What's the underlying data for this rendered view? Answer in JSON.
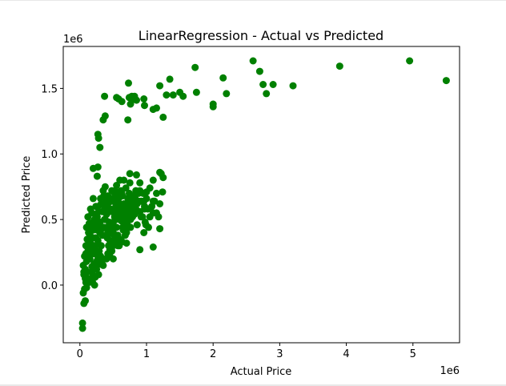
{
  "chart_data": {
    "type": "scatter",
    "title": "LinearRegression - Actual vs Predicted",
    "xlabel": "Actual Price",
    "ylabel": "Predicted Price",
    "x_offset_label": "1e6",
    "y_offset_label": "1e6",
    "xlim": [
      -0.25,
      5.7
    ],
    "ylim": [
      -0.44,
      1.82
    ],
    "x_ticks": [
      0,
      1,
      2,
      3,
      4,
      5
    ],
    "x_tick_labels": [
      "0",
      "1",
      "2",
      "3",
      "4",
      "5"
    ],
    "y_ticks": [
      0.0,
      0.5,
      1.0,
      1.5
    ],
    "y_tick_labels": [
      "0.0",
      "0.5",
      "1.0",
      "1.5"
    ],
    "grid": false,
    "marker_color": "#008000",
    "series": [
      {
        "points": [
          [
            0.04,
            -0.33
          ],
          [
            0.04,
            -0.29
          ],
          [
            0.06,
            -0.14
          ],
          [
            0.05,
            -0.06
          ],
          [
            0.08,
            -0.12
          ],
          [
            0.07,
            -0.03
          ],
          [
            0.09,
            0.02
          ],
          [
            0.06,
            0.08
          ],
          [
            0.08,
            0.12
          ],
          [
            0.05,
            0.15
          ],
          [
            0.1,
            0.18
          ],
          [
            0.07,
            0.22
          ],
          [
            0.12,
            0.26
          ],
          [
            0.09,
            0.3
          ],
          [
            0.11,
            0.35
          ],
          [
            0.13,
            0.4
          ],
          [
            0.1,
            0.44
          ],
          [
            0.14,
            0.47
          ],
          [
            0.15,
            0.38
          ],
          [
            0.16,
            0.32
          ],
          [
            0.17,
            0.27
          ],
          [
            0.15,
            0.2
          ],
          [
            0.18,
            0.14
          ],
          [
            0.2,
            0.07
          ],
          [
            0.19,
            0.02
          ],
          [
            0.22,
            0.0
          ],
          [
            0.13,
            0.05
          ],
          [
            0.11,
            0.1
          ],
          [
            0.21,
            0.24
          ],
          [
            0.23,
            0.3
          ],
          [
            0.24,
            0.36
          ],
          [
            0.2,
            0.42
          ],
          [
            0.22,
            0.5
          ],
          [
            0.18,
            0.55
          ],
          [
            0.24,
            0.6
          ],
          [
            0.26,
            0.52
          ],
          [
            0.28,
            0.45
          ],
          [
            0.3,
            0.4
          ],
          [
            0.27,
            0.34
          ],
          [
            0.32,
            0.3
          ],
          [
            0.29,
            0.26
          ],
          [
            0.31,
            0.22
          ],
          [
            0.33,
            0.18
          ],
          [
            0.35,
            0.15
          ],
          [
            0.25,
            0.12
          ],
          [
            0.28,
            0.08
          ],
          [
            0.34,
            0.38
          ],
          [
            0.36,
            0.44
          ],
          [
            0.38,
            0.5
          ],
          [
            0.4,
            0.54
          ],
          [
            0.37,
            0.58
          ],
          [
            0.42,
            0.62
          ],
          [
            0.39,
            0.66
          ],
          [
            0.44,
            0.48
          ],
          [
            0.46,
            0.42
          ],
          [
            0.41,
            0.36
          ],
          [
            0.43,
            0.3
          ],
          [
            0.48,
            0.26
          ],
          [
            0.45,
            0.34
          ],
          [
            0.5,
            0.4
          ],
          [
            0.47,
            0.46
          ],
          [
            0.52,
            0.52
          ],
          [
            0.49,
            0.56
          ],
          [
            0.54,
            0.6
          ],
          [
            0.51,
            0.64
          ],
          [
            0.56,
            0.68
          ],
          [
            0.53,
            0.72
          ],
          [
            0.58,
            0.58
          ],
          [
            0.6,
            0.5
          ],
          [
            0.55,
            0.44
          ],
          [
            0.57,
            0.38
          ],
          [
            0.62,
            0.34
          ],
          [
            0.59,
            0.3
          ],
          [
            0.64,
            0.44
          ],
          [
            0.61,
            0.54
          ],
          [
            0.66,
            0.62
          ],
          [
            0.63,
            0.7
          ],
          [
            0.68,
            0.58
          ],
          [
            0.65,
            0.48
          ],
          [
            0.7,
            0.52
          ],
          [
            0.67,
            0.6
          ],
          [
            0.72,
            0.66
          ],
          [
            0.69,
            0.74
          ],
          [
            0.74,
            0.56
          ],
          [
            0.71,
            0.46
          ],
          [
            0.76,
            0.5
          ],
          [
            0.73,
            0.62
          ],
          [
            0.78,
            0.68
          ],
          [
            0.75,
            0.78
          ],
          [
            0.8,
            0.6
          ],
          [
            0.82,
            0.54
          ],
          [
            0.77,
            0.64
          ],
          [
            0.84,
            0.72
          ],
          [
            0.79,
            0.58
          ],
          [
            0.86,
            0.62
          ],
          [
            0.88,
            0.7
          ],
          [
            0.9,
            0.56
          ],
          [
            0.92,
            0.64
          ],
          [
            0.95,
            0.7
          ],
          [
            0.97,
            0.6
          ],
          [
            1.0,
            0.66
          ],
          [
            0.94,
            0.52
          ],
          [
            0.98,
            0.48
          ],
          [
            1.02,
            0.58
          ],
          [
            0.2,
            0.36
          ],
          [
            0.22,
            0.28
          ],
          [
            0.26,
            0.42
          ],
          [
            0.3,
            0.48
          ],
          [
            0.34,
            0.56
          ],
          [
            0.38,
            0.62
          ],
          [
            0.42,
            0.68
          ],
          [
            0.46,
            0.58
          ],
          [
            0.5,
            0.48
          ],
          [
            0.54,
            0.5
          ],
          [
            0.58,
            0.66
          ],
          [
            0.62,
            0.72
          ],
          [
            0.66,
            0.54
          ],
          [
            0.7,
            0.6
          ],
          [
            0.74,
            0.7
          ],
          [
            0.78,
            0.56
          ],
          [
            0.12,
            0.52
          ],
          [
            0.16,
            0.58
          ],
          [
            0.2,
            0.66
          ],
          [
            0.24,
            0.46
          ],
          [
            0.28,
            0.56
          ],
          [
            0.32,
            0.62
          ],
          [
            0.36,
            0.68
          ],
          [
            0.4,
            0.44
          ],
          [
            0.44,
            0.56
          ],
          [
            0.48,
            0.64
          ],
          [
            0.52,
            0.7
          ],
          [
            0.56,
            0.56
          ],
          [
            0.6,
            0.62
          ],
          [
            0.64,
            0.68
          ],
          [
            0.68,
            0.5
          ],
          [
            0.72,
            0.56
          ],
          [
            0.76,
            0.62
          ],
          [
            0.8,
            0.68
          ],
          [
            0.84,
            0.58
          ],
          [
            0.88,
            0.64
          ],
          [
            0.18,
            0.1
          ],
          [
            0.21,
            0.16
          ],
          [
            0.25,
            0.18
          ],
          [
            0.14,
            0.22
          ],
          [
            0.17,
            0.3
          ],
          [
            0.19,
            0.48
          ],
          [
            0.23,
            0.54
          ],
          [
            0.27,
            0.6
          ],
          [
            0.31,
            0.66
          ],
          [
            0.35,
            0.72
          ],
          [
            0.08,
            0.05
          ],
          [
            0.1,
            -0.02
          ],
          [
            0.06,
            0.1
          ],
          [
            0.09,
            0.24
          ],
          [
            0.11,
            0.3
          ],
          [
            0.13,
            0.02
          ],
          [
            0.16,
            0.44
          ],
          [
            0.2,
            0.3
          ],
          [
            0.24,
            0.24
          ],
          [
            0.27,
            0.2
          ],
          [
            0.6,
            0.35
          ],
          [
            0.65,
            0.42
          ],
          [
            0.7,
            0.4
          ],
          [
            0.55,
            0.32
          ],
          [
            0.5,
            0.3
          ],
          [
            0.45,
            0.27
          ],
          [
            0.42,
            0.24
          ],
          [
            0.35,
            0.2
          ],
          [
            0.3,
            0.16
          ],
          [
            0.23,
            0.06
          ],
          [
            1.05,
            0.52
          ],
          [
            1.08,
            0.6
          ],
          [
            1.12,
            0.64
          ],
          [
            1.15,
            0.7
          ],
          [
            1.1,
            0.55
          ],
          [
            1.2,
            0.62
          ],
          [
            1.18,
            0.52
          ],
          [
            1.03,
            0.44
          ],
          [
            0.96,
            0.4
          ],
          [
            0.99,
            0.46
          ],
          [
            0.2,
            0.89
          ],
          [
            0.26,
            0.83
          ],
          [
            0.27,
            0.9
          ],
          [
            0.3,
            1.05
          ],
          [
            0.28,
            1.12
          ],
          [
            0.27,
            1.15
          ],
          [
            0.35,
            1.26
          ],
          [
            0.38,
            1.29
          ],
          [
            0.37,
            1.44
          ],
          [
            0.55,
            1.43
          ],
          [
            0.58,
            1.42
          ],
          [
            0.63,
            1.4
          ],
          [
            0.72,
            1.26
          ],
          [
            0.74,
            1.43
          ],
          [
            0.76,
            1.38
          ],
          [
            0.78,
            1.41
          ],
          [
            0.78,
            1.44
          ],
          [
            0.82,
            1.44
          ],
          [
            0.85,
            1.41
          ],
          [
            0.73,
            1.54
          ],
          [
            0.96,
            1.42
          ],
          [
            0.97,
            1.37
          ],
          [
            1.1,
            1.34
          ],
          [
            1.15,
            1.35
          ],
          [
            1.2,
            1.52
          ],
          [
            1.25,
            1.28
          ],
          [
            1.3,
            1.45
          ],
          [
            1.35,
            1.57
          ],
          [
            1.4,
            1.45
          ],
          [
            1.5,
            1.47
          ],
          [
            1.55,
            1.44
          ],
          [
            1.75,
            1.47
          ],
          [
            1.73,
            1.66
          ],
          [
            2.0,
            1.38
          ],
          [
            2.0,
            1.36
          ],
          [
            2.15,
            1.58
          ],
          [
            2.2,
            1.46
          ],
          [
            2.6,
            1.71
          ],
          [
            2.7,
            1.63
          ],
          [
            2.75,
            1.53
          ],
          [
            2.8,
            1.46
          ],
          [
            2.9,
            1.53
          ],
          [
            3.2,
            1.52
          ],
          [
            3.9,
            1.67
          ],
          [
            4.95,
            1.71
          ],
          [
            5.5,
            1.56
          ],
          [
            0.38,
            0.75
          ],
          [
            0.48,
            0.72
          ],
          [
            0.55,
            0.76
          ],
          [
            0.6,
            0.8
          ],
          [
            0.66,
            0.8
          ],
          [
            0.75,
            0.85
          ],
          [
            0.9,
            0.72
          ],
          [
            1.0,
            0.71
          ],
          [
            1.1,
            0.8
          ],
          [
            1.2,
            0.86
          ],
          [
            1.22,
            0.85
          ],
          [
            1.25,
            0.82
          ],
          [
            1.24,
            0.71
          ],
          [
            1.1,
            0.64
          ],
          [
            1.05,
            0.74
          ],
          [
            0.97,
            0.58
          ],
          [
            1.15,
            0.55
          ],
          [
            1.2,
            0.43
          ],
          [
            1.1,
            0.29
          ],
          [
            0.9,
            0.27
          ],
          [
            0.7,
            0.32
          ],
          [
            0.63,
            0.33
          ],
          [
            0.57,
            0.3
          ],
          [
            0.52,
            0.35
          ],
          [
            0.49,
            0.39
          ],
          [
            0.4,
            0.2
          ],
          [
            0.45,
            0.22
          ],
          [
            0.5,
            0.2
          ],
          [
            0.42,
            0.4
          ],
          [
            0.33,
            0.43
          ],
          [
            0.37,
            0.5
          ],
          [
            0.41,
            0.58
          ],
          [
            0.45,
            0.64
          ],
          [
            0.5,
            0.66
          ],
          [
            0.55,
            0.6
          ],
          [
            0.6,
            0.56
          ],
          [
            0.62,
            0.49
          ],
          [
            0.7,
            0.45
          ],
          [
            0.85,
            0.56
          ],
          [
            0.83,
            0.66
          ],
          [
            0.92,
            0.52
          ],
          [
            0.96,
            0.64
          ],
          [
            0.98,
            0.7
          ],
          [
            0.9,
            0.78
          ],
          [
            0.85,
            0.84
          ],
          [
            0.82,
            0.62
          ],
          [
            0.79,
            0.52
          ],
          [
            0.86,
            0.46
          ],
          [
            0.76,
            0.44
          ],
          [
            0.68,
            0.38
          ]
        ]
      }
    ]
  }
}
